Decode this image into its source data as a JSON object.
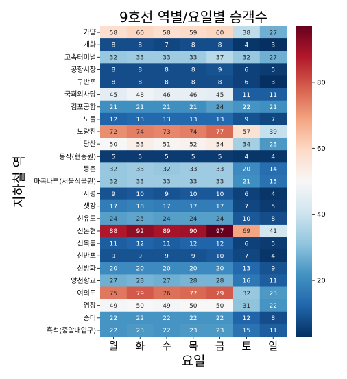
{
  "chart_data": {
    "type": "heatmap",
    "title": "9호선 역별/요일별 승객수",
    "xlabel": "요일",
    "ylabel": "지하철 역",
    "x_categories": [
      "월",
      "화",
      "수",
      "목",
      "금",
      "토",
      "일"
    ],
    "y_categories": [
      "가양",
      "개화",
      "고속터미널",
      "공항시장",
      "구반포",
      "국회의사당",
      "김포공항",
      "노들",
      "노량진",
      "당산",
      "동작(현충원)",
      "등촌",
      "마곡나루(서울식물원)",
      "사평",
      "샛강",
      "선유도",
      "신논현",
      "신목동",
      "신반포",
      "신방화",
      "양천향교",
      "여의도",
      "염창",
      "증미",
      "흑석(중앙대입구)"
    ],
    "values": [
      [
        58,
        60,
        58,
        59,
        60,
        38,
        27
      ],
      [
        8,
        8,
        7,
        8,
        8,
        4,
        3
      ],
      [
        32,
        33,
        33,
        33,
        37,
        32,
        27
      ],
      [
        8,
        8,
        8,
        8,
        9,
        6,
        5
      ],
      [
        8,
        8,
        8,
        8,
        8,
        6,
        3
      ],
      [
        45,
        48,
        46,
        46,
        45,
        11,
        11
      ],
      [
        21,
        21,
        21,
        21,
        24,
        22,
        21
      ],
      [
        12,
        13,
        13,
        13,
        13,
        9,
        7
      ],
      [
        72,
        74,
        73,
        74,
        77,
        57,
        39
      ],
      [
        50,
        53,
        51,
        52,
        54,
        34,
        23
      ],
      [
        5,
        5,
        5,
        5,
        5,
        4,
        4
      ],
      [
        32,
        33,
        32,
        33,
        33,
        20,
        14
      ],
      [
        32,
        33,
        33,
        33,
        33,
        21,
        15
      ],
      [
        9,
        10,
        9,
        10,
        10,
        6,
        4
      ],
      [
        17,
        18,
        17,
        17,
        17,
        7,
        5
      ],
      [
        24,
        25,
        24,
        24,
        24,
        10,
        8
      ],
      [
        88,
        92,
        89,
        90,
        97,
        69,
        41
      ],
      [
        11,
        12,
        11,
        12,
        12,
        6,
        5
      ],
      [
        9,
        9,
        9,
        9,
        10,
        7,
        4
      ],
      [
        20,
        20,
        20,
        20,
        20,
        13,
        9
      ],
      [
        27,
        28,
        27,
        28,
        28,
        16,
        11
      ],
      [
        75,
        79,
        76,
        77,
        79,
        32,
        23
      ],
      [
        49,
        50,
        49,
        50,
        50,
        31,
        22
      ],
      [
        22,
        22,
        22,
        22,
        22,
        12,
        8
      ],
      [
        22,
        23,
        22,
        23,
        23,
        15,
        11
      ]
    ],
    "colormap": "RdBu_r",
    "colorbar": {
      "ticks": [
        20,
        40,
        60,
        80
      ],
      "range": [
        3,
        97
      ]
    },
    "grid": false
  }
}
